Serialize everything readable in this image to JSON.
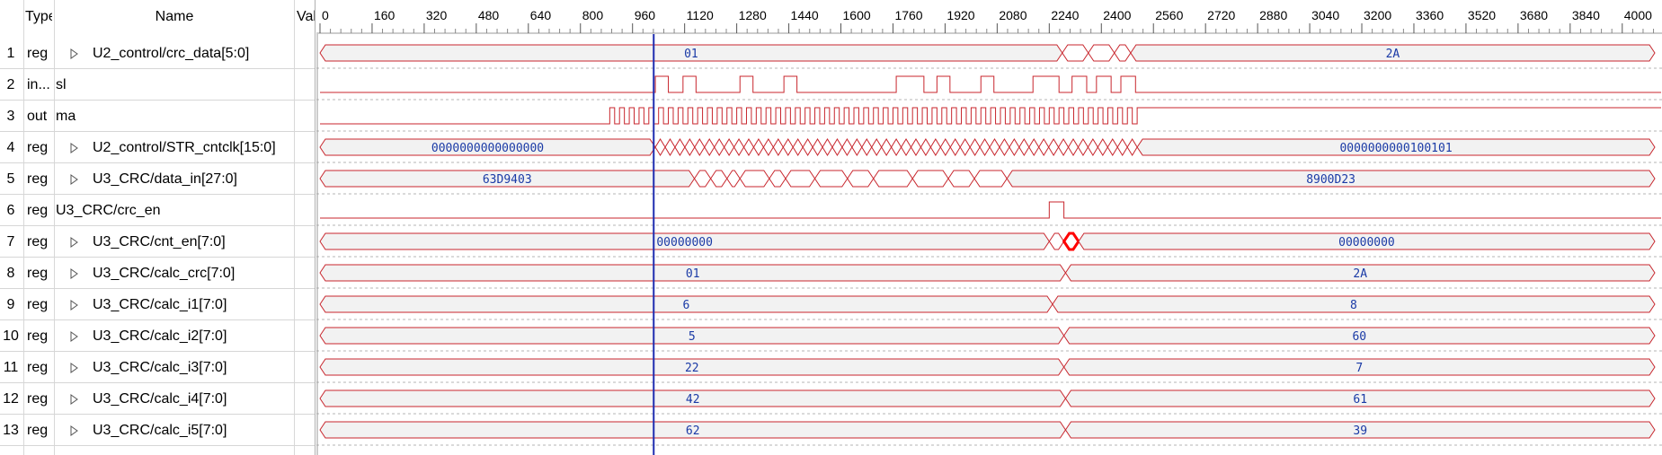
{
  "header": {
    "type": "Type",
    "name": "Name",
    "value": "Value"
  },
  "colors": {
    "wave": "#c8262d",
    "cursor": "#1f2db0",
    "label": "#1a3aa6",
    "fill": "#f2f2f2"
  },
  "ruler": {
    "ticks": [
      0,
      160,
      320,
      480,
      640,
      800,
      960,
      1120,
      1280,
      1440,
      1600,
      1760,
      1920,
      2080,
      2240,
      2400,
      2560,
      2720,
      2880,
      3040,
      3200,
      3360,
      3520,
      3680,
      3840,
      4000
    ],
    "max": 4100
  },
  "cursor": {
    "time": 1025
  },
  "signals": [
    {
      "idx": "1",
      "type": "reg",
      "name": "U2_control/crc_data[5:0]",
      "expand": true,
      "kind": "bus",
      "segments": [
        {
          "t0": 0,
          "t1": 2280,
          "label": "01"
        },
        {
          "t0": 2280,
          "t1": 2360,
          "label": ""
        },
        {
          "t0": 2360,
          "t1": 2440,
          "label": ""
        },
        {
          "t0": 2440,
          "t1": 2490,
          "label": ""
        },
        {
          "t0": 2490,
          "t1": 4100,
          "label": "2A"
        }
      ]
    },
    {
      "idx": "2",
      "type": "in...",
      "name": "sl",
      "expand": false,
      "kind": "bit",
      "edges": [
        [
          0,
          0
        ],
        [
          1030,
          1
        ],
        [
          1070,
          0
        ],
        [
          1115,
          1
        ],
        [
          1155,
          0
        ],
        [
          1290,
          1
        ],
        [
          1330,
          0
        ],
        [
          1425,
          1
        ],
        [
          1465,
          0
        ],
        [
          1770,
          1
        ],
        [
          1855,
          0
        ],
        [
          1895,
          1
        ],
        [
          1935,
          0
        ],
        [
          2030,
          1
        ],
        [
          2070,
          0
        ],
        [
          2190,
          1
        ],
        [
          2270,
          0
        ],
        [
          2310,
          1
        ],
        [
          2355,
          0
        ],
        [
          2385,
          1
        ],
        [
          2430,
          0
        ],
        [
          2460,
          1
        ],
        [
          2505,
          0
        ]
      ]
    },
    {
      "idx": "3",
      "type": "out",
      "name": "ma",
      "expand": false,
      "kind": "clock",
      "clock": {
        "t0": 890,
        "t1": 2510,
        "period": 30
      }
    },
    {
      "idx": "4",
      "type": "reg",
      "name": "U2_control/STR_cntclk[15:0]",
      "expand": true,
      "kind": "bus",
      "segments": [
        {
          "t0": 0,
          "t1": 1030,
          "label": "0000000000000000"
        },
        {
          "t0": 1030,
          "t1": 2510,
          "label": "",
          "dense": 30
        },
        {
          "t0": 2510,
          "t1": 4100,
          "label": "0000000000100101"
        }
      ]
    },
    {
      "idx": "5",
      "type": "reg",
      "name": "U3_CRC/data_in[27:0]",
      "expand": true,
      "kind": "bus",
      "segments": [
        {
          "t0": 0,
          "t1": 1150,
          "label": "63D9403"
        },
        {
          "t0": 1150,
          "t1": 1200,
          "label": ""
        },
        {
          "t0": 1200,
          "t1": 1250,
          "label": ""
        },
        {
          "t0": 1250,
          "t1": 1290,
          "label": ""
        },
        {
          "t0": 1290,
          "t1": 1380,
          "label": ""
        },
        {
          "t0": 1380,
          "t1": 1430,
          "label": ""
        },
        {
          "t0": 1430,
          "t1": 1520,
          "label": ""
        },
        {
          "t0": 1520,
          "t1": 1620,
          "label": ""
        },
        {
          "t0": 1620,
          "t1": 1700,
          "label": ""
        },
        {
          "t0": 1700,
          "t1": 1820,
          "label": ""
        },
        {
          "t0": 1820,
          "t1": 1930,
          "label": ""
        },
        {
          "t0": 1930,
          "t1": 2010,
          "label": ""
        },
        {
          "t0": 2010,
          "t1": 2110,
          "label": ""
        },
        {
          "t0": 2110,
          "t1": 4100,
          "label": "8900D23"
        }
      ]
    },
    {
      "idx": "6",
      "type": "reg",
      "name": "U3_CRC/crc_en",
      "expand": false,
      "kind": "bit",
      "edges": [
        [
          0,
          0
        ],
        [
          2240,
          1
        ],
        [
          2285,
          0
        ]
      ]
    },
    {
      "idx": "7",
      "type": "reg",
      "name": "U3_CRC/cnt_en[7:0]",
      "expand": true,
      "kind": "bus",
      "segments": [
        {
          "t0": 0,
          "t1": 2240,
          "label": "00000000"
        },
        {
          "t0": 2240,
          "t1": 2285,
          "label": ""
        },
        {
          "t0": 2285,
          "t1": 2330,
          "label": "",
          "glitch": true
        },
        {
          "t0": 2330,
          "t1": 4100,
          "label": "00000000"
        }
      ]
    },
    {
      "idx": "8",
      "type": "reg",
      "name": "U3_CRC/calc_crc[7:0]",
      "expand": true,
      "kind": "bus",
      "segments": [
        {
          "t0": 0,
          "t1": 2290,
          "label": "01"
        },
        {
          "t0": 2290,
          "t1": 4100,
          "label": "2A"
        }
      ]
    },
    {
      "idx": "9",
      "type": "reg",
      "name": "U3_CRC/calc_i1[7:0]",
      "expand": true,
      "kind": "bus",
      "segments": [
        {
          "t0": 0,
          "t1": 2250,
          "label": "6"
        },
        {
          "t0": 2250,
          "t1": 4100,
          "label": "8"
        }
      ]
    },
    {
      "idx": "10",
      "type": "reg",
      "name": "U3_CRC/calc_i2[7:0]",
      "expand": true,
      "kind": "bus",
      "segments": [
        {
          "t0": 0,
          "t1": 2285,
          "label": "5"
        },
        {
          "t0": 2285,
          "t1": 4100,
          "label": "60"
        }
      ]
    },
    {
      "idx": "11",
      "type": "reg",
      "name": "U3_CRC/calc_i3[7:0]",
      "expand": true,
      "kind": "bus",
      "segments": [
        {
          "t0": 0,
          "t1": 2285,
          "label": "22"
        },
        {
          "t0": 2285,
          "t1": 4100,
          "label": "7"
        }
      ]
    },
    {
      "idx": "12",
      "type": "reg",
      "name": "U3_CRC/calc_i4[7:0]",
      "expand": true,
      "kind": "bus",
      "segments": [
        {
          "t0": 0,
          "t1": 2290,
          "label": "42"
        },
        {
          "t0": 2290,
          "t1": 4100,
          "label": "61"
        }
      ]
    },
    {
      "idx": "13",
      "type": "reg",
      "name": "U3_CRC/calc_i5[7:0]",
      "expand": true,
      "kind": "bus",
      "segments": [
        {
          "t0": 0,
          "t1": 2290,
          "label": "62"
        },
        {
          "t0": 2290,
          "t1": 4100,
          "label": "39"
        }
      ]
    }
  ]
}
